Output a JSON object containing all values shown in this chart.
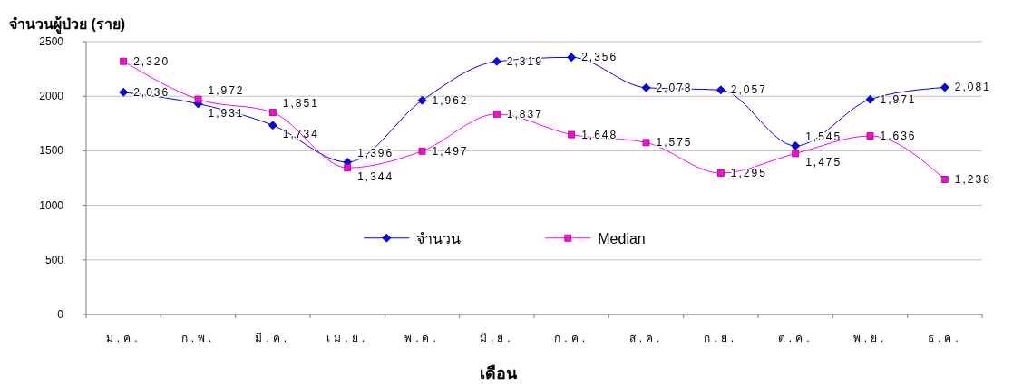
{
  "chart_data": {
    "type": "line",
    "ylabel": "จำนวนผู้ป่วย (ราย)",
    "xlabel": "เดือน",
    "categories": [
      "ม.ค.",
      "ก.พ.",
      "มี.ค.",
      "เม.ย.",
      "พ.ค.",
      "มิ.ย.",
      "ก.ค.",
      "ส.ค.",
      "ก.ย.",
      "ต.ค.",
      "พ.ย.",
      "ธ.ค."
    ],
    "series": [
      {
        "name": "จำนวน",
        "color": "#0000ff",
        "marker": "diamond",
        "values": [
          2036,
          1931,
          1734,
          1396,
          1962,
          2319,
          2356,
          2078,
          2057,
          1545,
          1971,
          2081
        ],
        "value_labels": [
          "2,036",
          "1,931",
          "1,734",
          "1,396",
          "1,962",
          "2,319",
          "2,356",
          "2,078",
          "2,057",
          "1,545",
          "1,971",
          "2,081"
        ]
      },
      {
        "name": "Median",
        "color": "#ff00ff",
        "marker": "square",
        "values": [
          2320,
          1972,
          1851,
          1344,
          1497,
          1837,
          1648,
          1575,
          1295,
          1475,
          1636,
          1238
        ],
        "value_labels": [
          "2,320",
          "1,972",
          "1,851",
          "1,344",
          "1,497",
          "1,837",
          "1,648",
          "1,575",
          "1,295",
          "1,475",
          "1,636",
          "1,238"
        ]
      }
    ],
    "ylim": [
      0,
      2500
    ],
    "yticks": [
      0,
      500,
      1000,
      1500,
      2000,
      2500
    ],
    "grid": "y",
    "legend": "center"
  }
}
